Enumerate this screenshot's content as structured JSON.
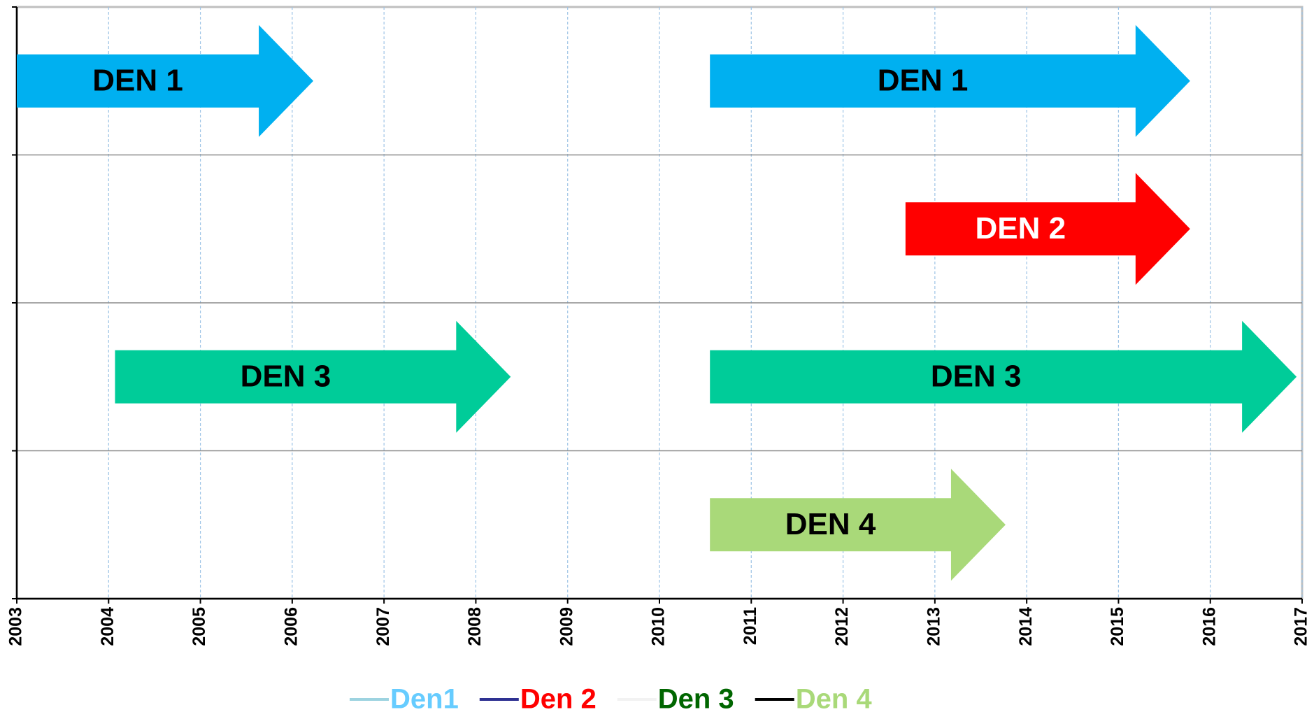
{
  "chart_data": {
    "type": "timeline",
    "xlim": [
      2003,
      2017
    ],
    "xticks": [
      2003,
      2004,
      2005,
      2006,
      2007,
      2008,
      2009,
      2010,
      2011,
      2012,
      2013,
      2014,
      2015,
      2016,
      2017
    ],
    "grid": true,
    "rows": [
      {
        "arrows": [
          {
            "label": "DEN 1",
            "color": "#00b0f0",
            "text_color": "#000000",
            "start": 2003.0,
            "end": 2006.23
          },
          {
            "label": "DEN 1",
            "color": "#00b0f0",
            "text_color": "#000000",
            "start": 2010.55,
            "end": 2015.78
          }
        ]
      },
      {
        "arrows": [
          {
            "label": "DEN 2",
            "color": "#ff0000",
            "text_color": "#ffffff",
            "start": 2012.68,
            "end": 2015.78
          }
        ]
      },
      {
        "arrows": [
          {
            "label": "DEN 3",
            "color": "#00cc99",
            "text_color": "#000000",
            "start": 2004.07,
            "end": 2008.38
          },
          {
            "label": "DEN 3",
            "color": "#00cc99",
            "text_color": "#000000",
            "start": 2010.55,
            "end": 2016.94
          }
        ]
      },
      {
        "arrows": [
          {
            "label": "DEN 4",
            "color": "#a9d979",
            "text_color": "#000000",
            "start": 2010.55,
            "end": 2013.77
          }
        ]
      }
    ],
    "legend": [
      {
        "name": "Den1",
        "line_color": "#9dd3e0",
        "text_color": "#66ccff"
      },
      {
        "name": "Den 2",
        "line_color": "#2e3192",
        "text_color": "#ff0000"
      },
      {
        "name": "Den 3",
        "line_color": "#f2f2f2",
        "text_color": "#006600"
      },
      {
        "name": "Den 4",
        "line_color": "#000000",
        "text_color": "#a9d979"
      }
    ]
  }
}
